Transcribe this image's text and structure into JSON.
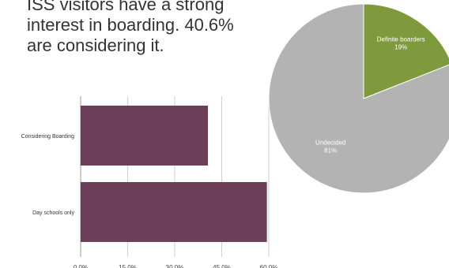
{
  "headline": {
    "line1": "ISS visitors have a strong",
    "line2": "interest in boarding. 40.6%",
    "line3": "are considering it."
  },
  "colors": {
    "bar": "#6a3f57",
    "pie_boarders": "#7f9a3c",
    "pie_undecided": "#b3b3b3",
    "text": "#333333",
    "grid": "#cfcfcf"
  },
  "chart_data": [
    {
      "type": "bar",
      "orientation": "horizontal",
      "categories": [
        "Considering Boarding",
        "Day schools only"
      ],
      "values": [
        40.6,
        59.4
      ],
      "xlim": [
        0,
        60
      ],
      "xticks": [
        "0.0%",
        "15.0%",
        "30.0%",
        "45.0%",
        "60.0%"
      ],
      "grid": true
    },
    {
      "type": "pie",
      "slices": [
        {
          "label": "Definite boarders",
          "pct_label": "19%",
          "value": 19
        },
        {
          "label": "Undecided",
          "pct_label": "81%",
          "value": 81
        }
      ]
    }
  ]
}
